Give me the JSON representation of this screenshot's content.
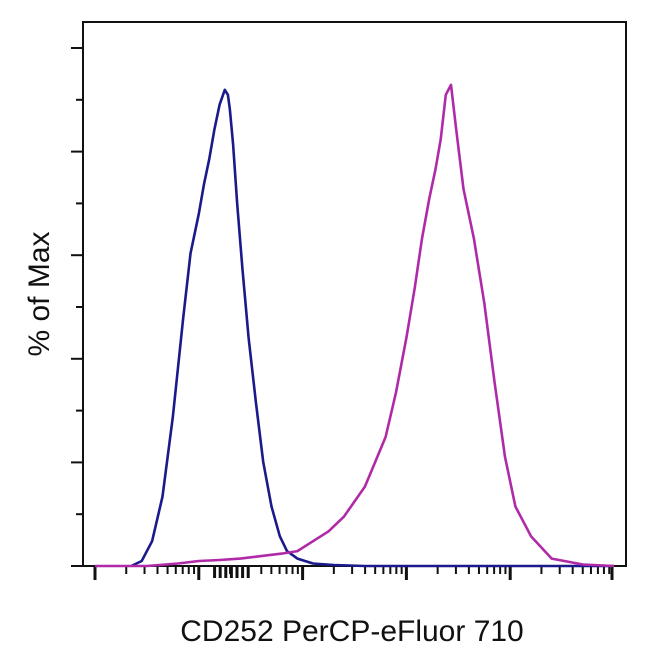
{
  "chart_data": {
    "type": "line",
    "title": "",
    "xlabel": "CD252 PerCP-eFluor 710",
    "ylabel": "% of Max",
    "x_scale": "log",
    "x_range_decades": [
      0,
      5
    ],
    "ylim": [
      0,
      100
    ],
    "grid": false,
    "legend": "none",
    "series": [
      {
        "color": "#1a1a8c",
        "x": [
          0.35,
          0.45,
          0.55,
          0.65,
          0.75,
          0.85,
          0.92,
          1.0,
          1.05,
          1.1,
          1.15,
          1.2,
          1.25,
          1.28,
          1.3,
          1.33,
          1.37,
          1.42,
          1.48,
          1.55,
          1.62,
          1.7,
          1.78,
          1.85,
          1.95,
          2.1,
          2.3,
          2.6,
          3.0,
          3.5,
          4.0,
          4.5,
          5.0
        ],
        "values": [
          0,
          1,
          5,
          14,
          30,
          50,
          63,
          71,
          77,
          82,
          88,
          93,
          96,
          95,
          92,
          85,
          73,
          60,
          46,
          33,
          21,
          12,
          6,
          3,
          1.5,
          0.5,
          0.2,
          0,
          0,
          0,
          0,
          0,
          0
        ]
      },
      {
        "color": "#b02aa8",
        "x": [
          0,
          0.5,
          0.8,
          1.0,
          1.2,
          1.4,
          1.6,
          1.8,
          1.95,
          2.1,
          2.25,
          2.4,
          2.5,
          2.6,
          2.7,
          2.8,
          2.9,
          3.0,
          3.08,
          3.15,
          3.22,
          3.28,
          3.33,
          3.38,
          3.43,
          3.48,
          3.55,
          3.65,
          3.75,
          3.85,
          3.95,
          4.05,
          4.2,
          4.4,
          4.7,
          5.0
        ],
        "values": [
          0,
          0,
          0.5,
          1,
          1.2,
          1.5,
          2,
          2.5,
          3,
          5,
          7,
          10,
          13,
          16,
          21,
          26,
          35,
          46,
          56,
          66,
          74,
          80,
          86,
          95,
          97,
          88,
          76,
          66,
          53,
          37,
          22,
          12,
          6,
          1.5,
          0.3,
          0
        ]
      }
    ]
  }
}
